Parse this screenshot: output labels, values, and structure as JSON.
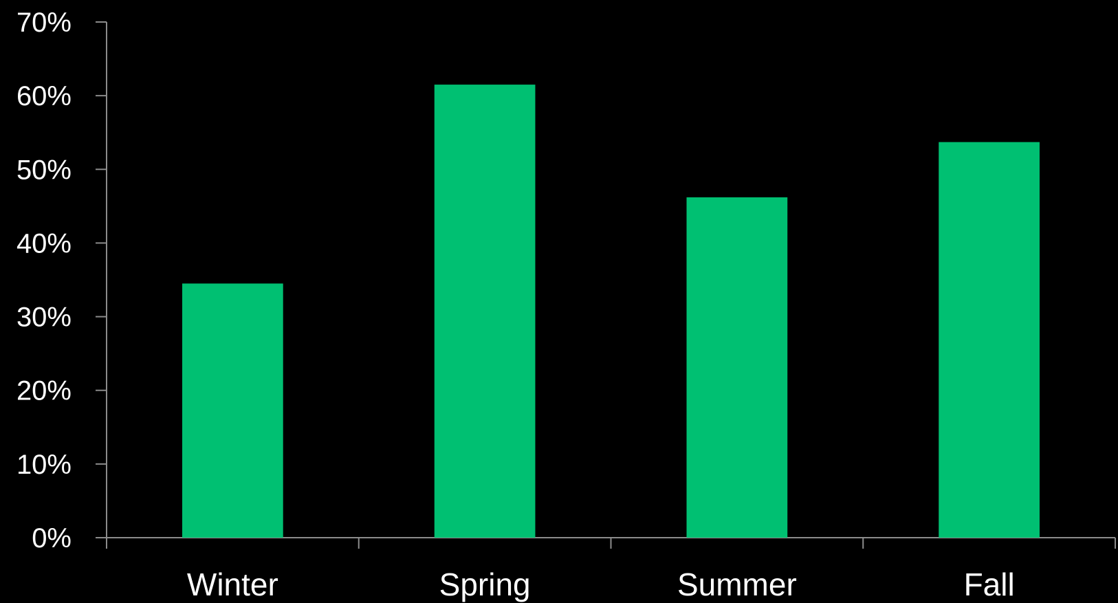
{
  "chart_data": {
    "type": "bar",
    "title": "",
    "xlabel": "",
    "ylabel": "",
    "categories": [
      "Winter",
      "Spring",
      "Summer",
      "Fall"
    ],
    "values": [
      34.5,
      61.5,
      46.2,
      53.7
    ],
    "value_unit": "%",
    "ylim": [
      0,
      70
    ],
    "y_ticks": [
      0,
      10,
      20,
      30,
      40,
      50,
      60,
      70
    ],
    "y_tick_labels": [
      "0%",
      "10%",
      "20%",
      "30%",
      "40%",
      "50%",
      "60%",
      "70%"
    ],
    "grid": false,
    "legend": "none",
    "colors": {
      "background": "#000000",
      "bar": "#00c072",
      "axis": "#8c8c8c",
      "text": "#ffffff"
    }
  }
}
